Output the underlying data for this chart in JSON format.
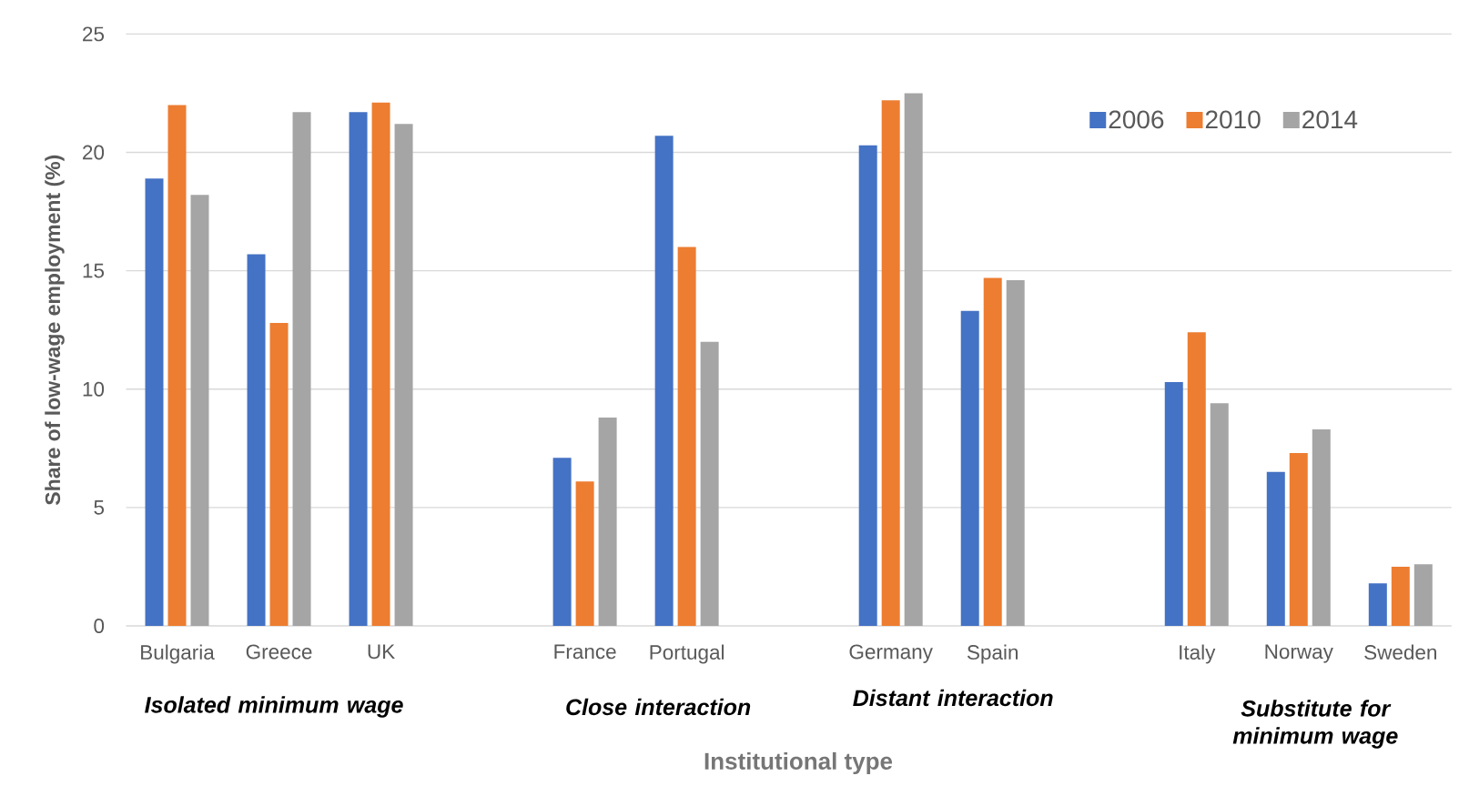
{
  "chart_data": {
    "type": "bar",
    "xlabel": "Institutional type",
    "ylabel": "Share of low-wage employment (%)",
    "categories": [
      "Bulgaria",
      "Greece",
      "UK",
      null,
      "France",
      "Portugal",
      null,
      "Germany",
      "Spain",
      null,
      "Italy",
      "Norway",
      "Sweden"
    ],
    "series": [
      {
        "name": "2006",
        "color": "#4472c4",
        "values": [
          18.9,
          15.7,
          21.7,
          null,
          7.1,
          20.7,
          null,
          20.3,
          13.3,
          null,
          10.3,
          6.5,
          1.8
        ]
      },
      {
        "name": "2010",
        "color": "#ed7d31",
        "values": [
          22.0,
          12.8,
          22.1,
          null,
          6.1,
          16.0,
          null,
          22.2,
          14.7,
          null,
          12.4,
          7.3,
          2.5
        ]
      },
      {
        "name": "2014",
        "color": "#a5a5a5",
        "values": [
          18.2,
          21.7,
          21.2,
          null,
          8.8,
          12.0,
          null,
          22.5,
          14.6,
          null,
          9.4,
          8.3,
          2.6
        ]
      }
    ],
    "ylim": [
      0,
      25
    ],
    "yticks": [
      0,
      5,
      10,
      15,
      20,
      25
    ],
    "grid": "y",
    "legend": "top right",
    "annotations": [
      "Isolated minimum wage",
      "Close interaction",
      "Distant interaction",
      "Substitute for minimum wage"
    ]
  }
}
